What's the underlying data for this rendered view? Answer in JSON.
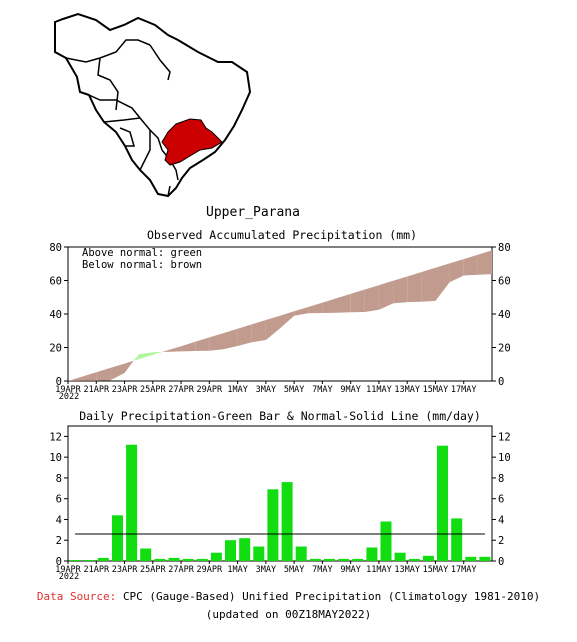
{
  "region": "Upper_Parana",
  "accumulated": {
    "title": "Observed Accumulated Precipitation (mm)",
    "legend": [
      "Above normal: green",
      "Below normal: brown"
    ],
    "ylim": [
      0,
      80
    ],
    "yticks": [
      0,
      20,
      40,
      60,
      80
    ]
  },
  "daily": {
    "title": "Daily Precipitation-Green Bar & Normal-Solid Line (mm/day)",
    "ylim": [
      0,
      13
    ],
    "yticks": [
      0,
      2,
      4,
      6,
      8,
      10,
      12
    ]
  },
  "dates": {
    "tick_labels": [
      "19APR",
      "21APR",
      "23APR",
      "25APR",
      "27APR",
      "29APR",
      "1MAY",
      "3MAY",
      "5MAY",
      "7MAY",
      "9MAY",
      "11MAY",
      "13MAY",
      "15MAY",
      "17MAY"
    ],
    "year": "2022"
  },
  "colors": {
    "above_normal": "#b2f5a0",
    "below_normal": "#c29b8f",
    "bar": "#11dd11",
    "map_region": "#cc0000",
    "source_label": "#e03030"
  },
  "chart_data": [
    {
      "type": "area",
      "title": "Observed Accumulated Precipitation (mm)",
      "x": [
        "19APR",
        "20APR",
        "21APR",
        "22APR",
        "23APR",
        "24APR",
        "25APR",
        "26APR",
        "27APR",
        "28APR",
        "29APR",
        "30APR",
        "1MAY",
        "2MAY",
        "3MAY",
        "4MAY",
        "5MAY",
        "6MAY",
        "7MAY",
        "8MAY",
        "9MAY",
        "10MAY",
        "11MAY",
        "12MAY",
        "13MAY",
        "14MAY",
        "15MAY",
        "16MAY",
        "17MAY",
        "18MAY"
      ],
      "series": [
        {
          "name": "Observed",
          "values": [
            0.1,
            0.1,
            0.4,
            4.8,
            16.0,
            17.2,
            17.4,
            17.7,
            17.9,
            18.1,
            18.9,
            20.9,
            23.1,
            24.5,
            31.4,
            39.0,
            40.4,
            40.6,
            40.8,
            41.0,
            41.2,
            42.5,
            46.3,
            47.1,
            47.3,
            47.8,
            58.9,
            63.0,
            63.4,
            63.8
          ]
        },
        {
          "name": "Normal",
          "values": [
            2.6,
            5.2,
            7.8,
            10.4,
            13.0,
            15.6,
            18.2,
            20.8,
            23.4,
            26.0,
            28.6,
            31.2,
            33.8,
            36.4,
            39.0,
            41.6,
            44.2,
            46.8,
            49.4,
            52.0,
            54.6,
            57.2,
            59.8,
            62.4,
            65.0,
            67.6,
            70.2,
            72.8,
            75.4,
            78.0
          ]
        }
      ],
      "ylim": [
        0,
        80
      ]
    },
    {
      "type": "bar",
      "title": "Daily Precipitation-Green Bar & Normal-Solid Line (mm/day)",
      "categories": [
        "19APR",
        "20APR",
        "21APR",
        "22APR",
        "23APR",
        "24APR",
        "25APR",
        "26APR",
        "27APR",
        "28APR",
        "29APR",
        "30APR",
        "1MAY",
        "2MAY",
        "3MAY",
        "4MAY",
        "5MAY",
        "6MAY",
        "7MAY",
        "8MAY",
        "9MAY",
        "10MAY",
        "11MAY",
        "12MAY",
        "13MAY",
        "14MAY",
        "15MAY",
        "16MAY",
        "17MAY",
        "18MAY"
      ],
      "series": [
        {
          "name": "Daily Precipitation",
          "values": [
            0.1,
            0.1,
            0.3,
            4.4,
            11.2,
            1.2,
            0.2,
            0.3,
            0.2,
            0.2,
            0.8,
            2.0,
            2.2,
            1.4,
            6.9,
            7.6,
            1.4,
            0.2,
            0.2,
            0.2,
            0.2,
            1.3,
            3.8,
            0.8,
            0.2,
            0.5,
            11.1,
            4.1,
            0.4,
            0.4
          ]
        },
        {
          "name": "Normal",
          "values": [
            2.6,
            2.6,
            2.6,
            2.6,
            2.6,
            2.6,
            2.6,
            2.6,
            2.6,
            2.6,
            2.6,
            2.6,
            2.6,
            2.6,
            2.6,
            2.6,
            2.6,
            2.6,
            2.6,
            2.6,
            2.6,
            2.6,
            2.6,
            2.6,
            2.6,
            2.6,
            2.6,
            2.6,
            2.6,
            2.6
          ]
        }
      ],
      "ylim": [
        0,
        13
      ]
    }
  ],
  "footer": {
    "source_label": "Data Source:",
    "source_text": "CPC (Gauge-Based) Unified Precipitation (Climatology 1981-2010)",
    "updated": "(updated on 00Z18MAY2022)"
  }
}
